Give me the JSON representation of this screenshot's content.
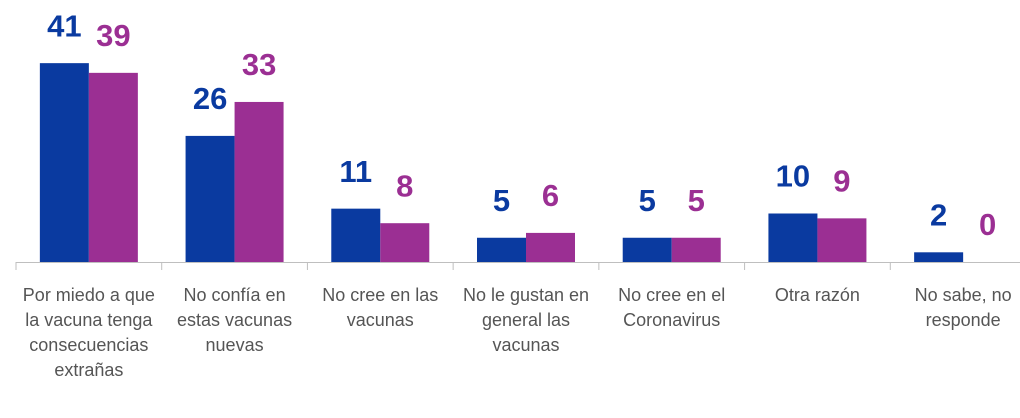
{
  "chart_data": {
    "type": "bar",
    "categories": [
      "Por miedo a que la vacuna tenga consecuencias extrañas",
      "No confía en estas vacunas nuevas",
      "No cree en las vacunas",
      "No le gustan en general las vacunas",
      "No cree en el Coronavirus",
      "Otra razón",
      "No sabe, no responde"
    ],
    "series": [
      {
        "color": "#0a3aa0",
        "values": [
          41,
          26,
          11,
          5,
          5,
          10,
          2
        ]
      },
      {
        "color": "#9b2f93",
        "values": [
          39,
          33,
          8,
          6,
          5,
          9,
          0
        ]
      }
    ],
    "ylim": [
      0,
      50
    ]
  }
}
